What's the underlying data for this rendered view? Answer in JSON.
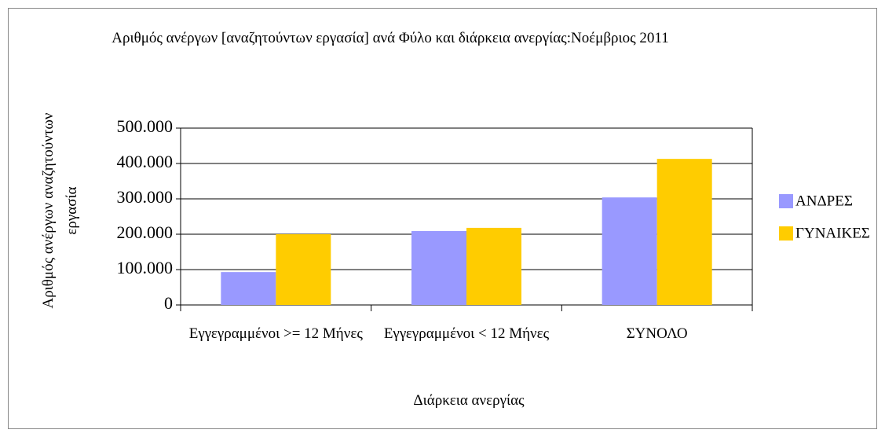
{
  "chart_data": {
    "type": "bar",
    "title": "Αριθμός ανέργων [αναζητούντων εργασία] ανά Φύλο και διάρκεια ανεργίας:Νοέμβριος 2011",
    "x_label": "Διάρκεια ανεργίας",
    "y_label": "Αριθμός ανέργων αναζητούντων εργασία",
    "categories": [
      "Εγγεγραμμένοι >= 12 Μήνες",
      "Εγγεγραμμένοι < 12 Μήνες",
      "ΣΥΝΟΛΟ"
    ],
    "series": [
      {
        "name": "ΑΝΔΡΕΣ",
        "color": "#9999ff",
        "values": [
          93000,
          209000,
          304000
        ]
      },
      {
        "name": "ΓΥΝΑΙΚΕΣ",
        "color": "#ffcc00",
        "values": [
          200000,
          218000,
          413000
        ]
      }
    ],
    "ylim": [
      0,
      500000
    ],
    "yticks": [
      0,
      {
        "value": 100000,
        "label": "100.000"
      },
      {
        "value": 200000,
        "label": "200.000"
      },
      {
        "value": 300000,
        "label": "300.000"
      },
      {
        "value": 400000,
        "label": "400.000"
      },
      {
        "value": 500000,
        "label": "500.000"
      }
    ],
    "grid": true,
    "legend": "right"
  }
}
